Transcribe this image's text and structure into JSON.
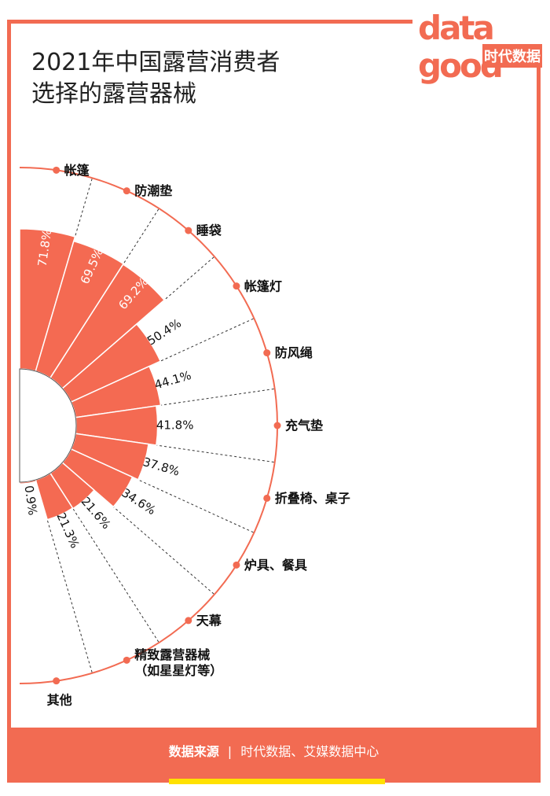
{
  "title_lines": [
    "2021年中国露营消费者",
    "选择的露营器械"
  ],
  "logo": {
    "word_top": "data",
    "word_bottom": "good",
    "brand": "时代数据"
  },
  "footer": {
    "label": "数据来源",
    "separator": "|",
    "sources": "时代数据、艾媒数据中心"
  },
  "colors": {
    "accent": "#f26b52",
    "bar": "#f46a52",
    "highlight": "#ffe100"
  },
  "chart_data": {
    "type": "bar",
    "layout": "radial-semicircle",
    "title": "2021年中国露营消费者选择的露营器械",
    "categories": [
      {
        "label": [
          "帐篷"
        ],
        "value": 71.8,
        "display": "71.8%"
      },
      {
        "label": [
          "防潮垫"
        ],
        "value": 69.5,
        "display": "69.5%"
      },
      {
        "label": [
          "睡袋"
        ],
        "value": 69.2,
        "display": "69.2%"
      },
      {
        "label": [
          "帐篷灯"
        ],
        "value": 50.4,
        "display": "50.4%"
      },
      {
        "label": [
          "防风绳"
        ],
        "value": 44.1,
        "display": "44.1%"
      },
      {
        "label": [
          "充气垫"
        ],
        "value": 41.8,
        "display": "41.8%"
      },
      {
        "label": [
          "折叠椅、桌子"
        ],
        "value": 37.8,
        "display": "37.8%"
      },
      {
        "label": [
          "炉具、餐具"
        ],
        "value": 34.6,
        "display": "34.6%"
      },
      {
        "label": [
          "天幕"
        ],
        "value": 21.6,
        "display": "21.6%"
      },
      {
        "label": [
          "精致露营器械",
          "（如星星灯等）"
        ],
        "value": 21.3,
        "display": "21.3%"
      },
      {
        "label": [
          "其他"
        ],
        "value": 0.9,
        "display": "0.9%"
      }
    ]
  }
}
